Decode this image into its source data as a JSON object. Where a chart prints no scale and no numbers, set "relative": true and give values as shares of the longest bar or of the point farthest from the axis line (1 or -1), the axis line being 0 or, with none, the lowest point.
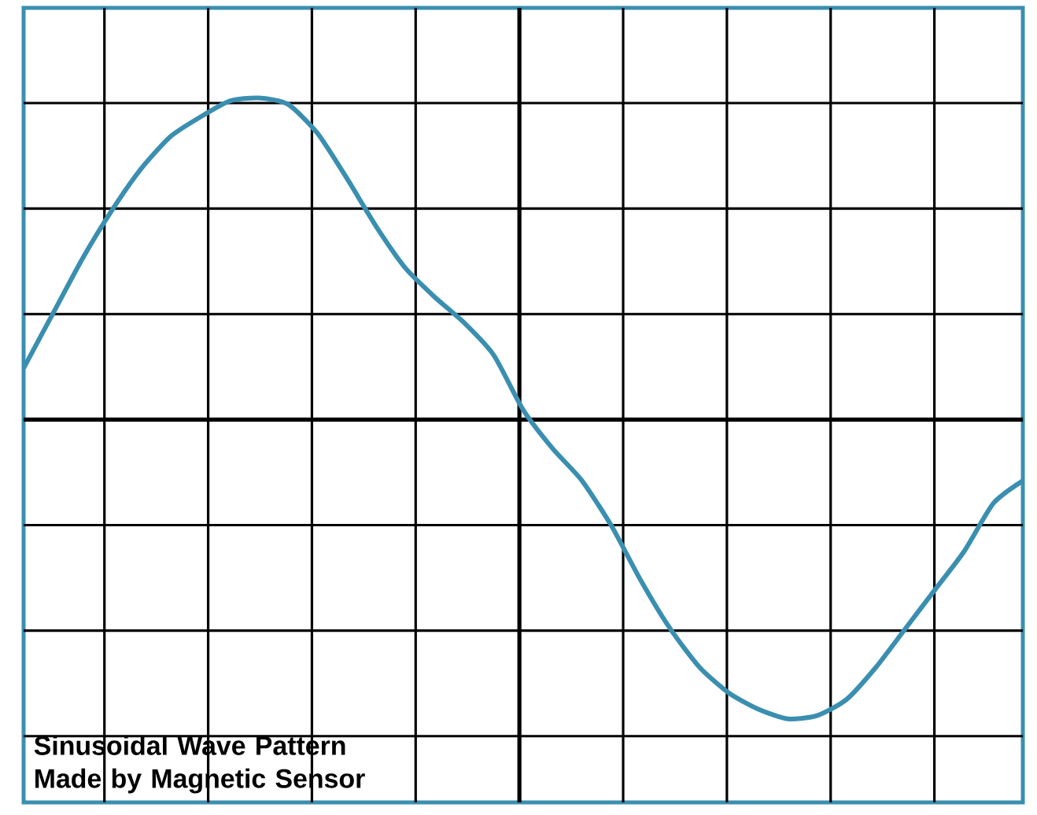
{
  "chart_data": {
    "type": "line",
    "title": "Sinusoidal Wave Pattern Made by Magnetic Sensor",
    "relative": true,
    "grid": true,
    "color": "#3a8fb0",
    "categories": [
      null,
      null,
      null,
      null,
      null,
      null,
      null,
      null,
      null,
      null,
      null,
      null,
      null,
      null,
      null,
      null,
      null,
      null,
      null,
      null,
      null,
      null,
      null,
      null,
      null,
      null,
      null,
      null,
      null,
      null,
      null,
      null,
      null,
      null,
      null
    ],
    "values": [
      0.16,
      0.33,
      0.5,
      0.65,
      0.78,
      0.88,
      0.94,
      0.99,
      1.0,
      0.98,
      0.89,
      0.75,
      0.6,
      0.47,
      0.38,
      0.3,
      0.2,
      0.03,
      -0.09,
      -0.19,
      -0.33,
      -0.5,
      -0.65,
      -0.77,
      -0.85,
      -0.9,
      -0.93,
      -0.92,
      -0.87,
      -0.77,
      -0.65,
      -0.53,
      -0.41,
      -0.26,
      -0.19
    ]
  }
}
